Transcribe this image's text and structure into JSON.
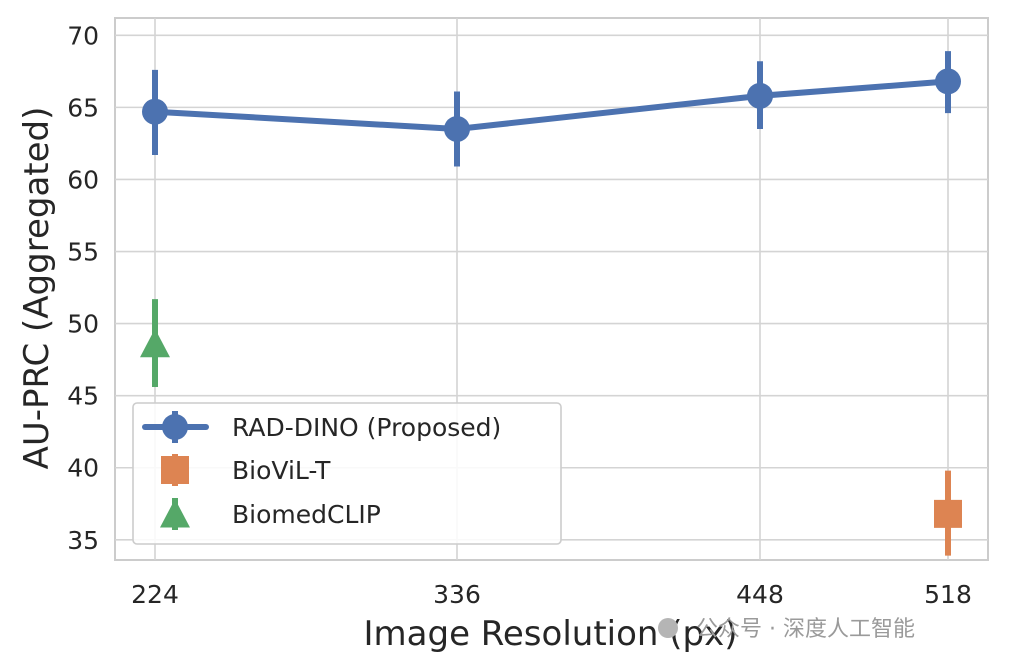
{
  "chart_data": {
    "type": "line",
    "xlabel": "Image Resolution (px)",
    "ylabel": "AU-PRC (Aggregated)",
    "categories": [
      "224",
      "336",
      "448",
      "518"
    ],
    "ylim": [
      32,
      71
    ],
    "yticks": [
      35,
      40,
      45,
      50,
      55,
      60,
      65,
      70
    ],
    "grid": true,
    "legend_position": "lower-left",
    "series": [
      {
        "name": "RAD-DINO (Proposed)",
        "color": "#4c72b0",
        "marker": "circle",
        "connected": true,
        "points": [
          {
            "x": "224",
            "y": 64.7,
            "err_low": 61.7,
            "err_high": 67.6
          },
          {
            "x": "336",
            "y": 63.5,
            "err_low": 60.9,
            "err_high": 66.1
          },
          {
            "x": "448",
            "y": 65.8,
            "err_low": 63.5,
            "err_high": 68.2
          },
          {
            "x": "518",
            "y": 66.8,
            "err_low": 64.6,
            "err_high": 68.9
          }
        ]
      },
      {
        "name": "BioViL-T",
        "color": "#dd8452",
        "marker": "square",
        "connected": false,
        "points": [
          {
            "x": "518",
            "y": 36.8,
            "err_low": 33.9,
            "err_high": 39.8
          }
        ]
      },
      {
        "name": "BiomedCLIP",
        "color": "#55a868",
        "marker": "triangle",
        "connected": false,
        "points": [
          {
            "x": "224",
            "y": 48.6,
            "err_low": 45.6,
            "err_high": 51.7
          }
        ]
      }
    ]
  },
  "watermark": "公众号 · 深度人工智能"
}
